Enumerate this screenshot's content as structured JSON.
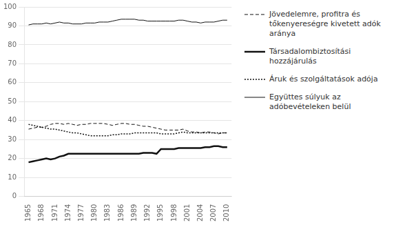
{
  "chart_data": {
    "type": "line",
    "x": [
      1965,
      1966,
      1967,
      1968,
      1969,
      1970,
      1971,
      1972,
      1973,
      1974,
      1975,
      1976,
      1977,
      1978,
      1979,
      1980,
      1981,
      1982,
      1983,
      1984,
      1985,
      1986,
      1987,
      1988,
      1989,
      1990,
      1991,
      1992,
      1993,
      1994,
      1995,
      1996,
      1997,
      1998,
      1999,
      2000,
      2001,
      2002,
      2003,
      2004,
      2005,
      2006,
      2007,
      2008,
      2009,
      2010
    ],
    "series": [
      {
        "name": "Jövedelemre, profitra és\ntőkenyereségre kivetett adók\naránya",
        "color": "#111111",
        "line_style": "dashed",
        "values": [
          35.5,
          36.0,
          36.5,
          36.5,
          37.0,
          38.0,
          38.5,
          38.5,
          38.0,
          38.5,
          38.0,
          37.5,
          38.0,
          38.0,
          38.5,
          38.5,
          38.5,
          38.5,
          38.0,
          37.5,
          38.0,
          38.5,
          38.5,
          38.0,
          38.0,
          37.5,
          37.0,
          37.0,
          36.5,
          36.0,
          35.5,
          35.0,
          35.0,
          35.0,
          35.0,
          35.5,
          34.5,
          34.0,
          34.0,
          33.5,
          34.0,
          34.0,
          33.5,
          33.0,
          33.5,
          33.5
        ]
      },
      {
        "name": "Társadalombiztosítási\nhozzájárulás",
        "color": "#111111",
        "line_style": "thick",
        "values": [
          18.0,
          18.5,
          19.0,
          19.5,
          20.0,
          19.5,
          20.0,
          21.0,
          21.5,
          22.5,
          22.5,
          22.5,
          22.5,
          22.5,
          22.5,
          22.5,
          22.5,
          22.5,
          22.5,
          22.5,
          22.5,
          22.5,
          22.5,
          22.5,
          22.5,
          22.5,
          23.0,
          23.0,
          23.0,
          22.5,
          25.0,
          25.0,
          25.0,
          25.0,
          25.5,
          25.5,
          25.5,
          25.5,
          25.5,
          25.5,
          26.0,
          26.0,
          26.5,
          26.5,
          26.0,
          26.0
        ]
      },
      {
        "name": "Áruk és szolgáltatások adója",
        "color": "#111111",
        "line_style": "dotted",
        "values": [
          38.0,
          37.5,
          37.0,
          36.5,
          36.0,
          35.5,
          35.5,
          35.0,
          34.5,
          34.0,
          33.5,
          33.5,
          33.0,
          32.5,
          32.0,
          32.0,
          32.0,
          32.0,
          32.0,
          32.5,
          32.5,
          33.0,
          33.0,
          33.0,
          33.5,
          33.5,
          33.5,
          33.5,
          33.5,
          33.5,
          33.0,
          33.0,
          33.0,
          33.0,
          33.5,
          34.0,
          33.5,
          33.5,
          33.5,
          33.5,
          33.5,
          33.5,
          33.5,
          33.5,
          33.5,
          33.5
        ]
      },
      {
        "name": "Együttes súlyuk az\nadóbevételeken belül",
        "color": "#111111",
        "line_style": "solid",
        "values": [
          90.5,
          91.0,
          91.0,
          91.0,
          91.5,
          91.0,
          91.5,
          92.0,
          91.5,
          91.5,
          91.0,
          91.0,
          91.0,
          91.5,
          91.5,
          91.5,
          92.0,
          92.0,
          92.0,
          92.5,
          93.0,
          93.5,
          93.5,
          93.5,
          93.5,
          93.0,
          93.0,
          92.5,
          92.5,
          92.5,
          92.5,
          92.5,
          92.5,
          92.5,
          93.0,
          93.0,
          92.5,
          92.0,
          92.0,
          91.5,
          92.0,
          92.0,
          92.0,
          92.5,
          93.0,
          93.0
        ]
      }
    ],
    "xlim": [
      1964,
      2011
    ],
    "xticks": [
      1965,
      1968,
      1971,
      1974,
      1977,
      1980,
      1983,
      1986,
      1989,
      1992,
      1995,
      1998,
      2001,
      2004,
      2007,
      2010
    ],
    "ylim": [
      0,
      100
    ],
    "yticks": [
      0,
      10,
      20,
      30,
      40,
      50,
      60,
      70,
      80,
      90,
      100
    ],
    "grid": "y",
    "legend": "right"
  }
}
